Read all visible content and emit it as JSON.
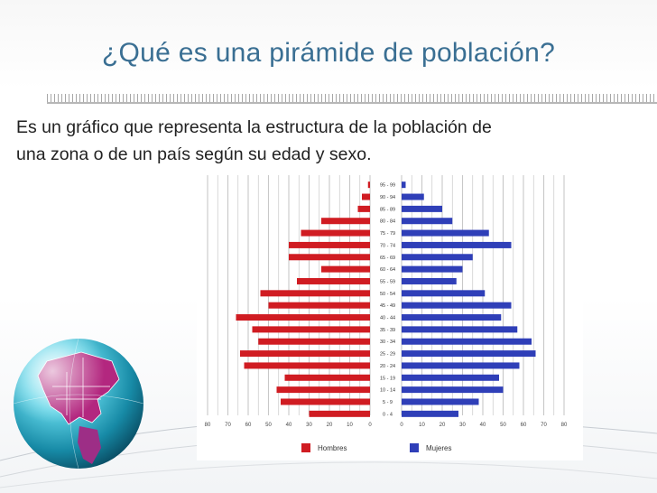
{
  "slide": {
    "title": "¿Qué es una pirámide de población?",
    "text_line1": "Es un gráfico que representa la estructura de la población de",
    "text_line2": "una zona o de un país según su edad y sexo."
  },
  "colors": {
    "title": "#3a6f93",
    "hombres": "#d01c22",
    "mujeres": "#2f3fb8",
    "grid": "#c8c8c8"
  },
  "decor": {
    "globe": "globe-icon",
    "swoosh": "swoosh-lines"
  },
  "chart_data": {
    "type": "bar",
    "orientation": "horizontal-population-pyramid",
    "categories": [
      "95 - 99",
      "90 - 94",
      "85 - 89",
      "80 - 84",
      "75 - 79",
      "70 - 74",
      "65 - 69",
      "60 - 64",
      "55 - 59",
      "50 - 54",
      "45 - 49",
      "40 - 44",
      "35 - 39",
      "30 - 34",
      "25 - 29",
      "20 - 24",
      "15 - 19",
      "10 - 14",
      "5 - 9",
      "0 - 4"
    ],
    "series": [
      {
        "name": "Hombres",
        "side": "left",
        "values": [
          1,
          4,
          6,
          24,
          34,
          40,
          40,
          24,
          36,
          54,
          50,
          66,
          58,
          55,
          64,
          62,
          42,
          46,
          44,
          30
        ]
      },
      {
        "name": "Mujeres",
        "side": "right",
        "values": [
          2,
          11,
          20,
          25,
          43,
          54,
          35,
          30,
          27,
          41,
          54,
          49,
          57,
          64,
          66,
          58,
          48,
          50,
          38,
          28
        ]
      }
    ],
    "axis_ticks_left": [
      "80",
      "70",
      "60",
      "50",
      "40",
      "30",
      "20",
      "10",
      "0"
    ],
    "axis_ticks_right": [
      "0",
      "10",
      "20",
      "30",
      "40",
      "50",
      "60",
      "70",
      "80"
    ],
    "xlim": [
      0,
      80
    ],
    "grid": true,
    "legend": "bottom",
    "legend_labels": [
      "Hombres",
      "Mujeres"
    ]
  }
}
